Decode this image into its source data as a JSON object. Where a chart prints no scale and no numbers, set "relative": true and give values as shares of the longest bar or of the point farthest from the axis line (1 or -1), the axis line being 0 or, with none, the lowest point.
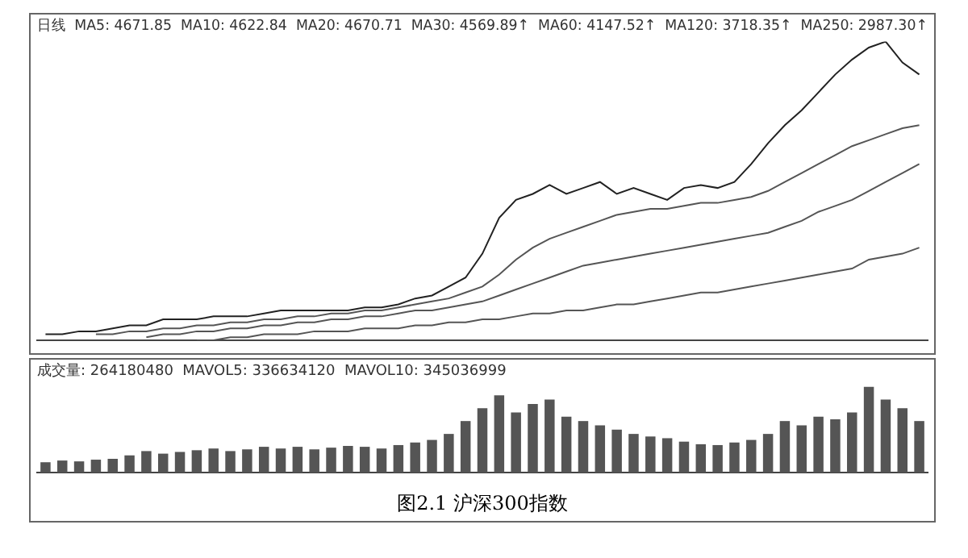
{
  "chart_data": [
    {
      "type": "line",
      "title": "日线  MA5: 4671.85  MA10: 4622.84  MA20: 4670.71  MA30: 4569.89↑  MA60: 4147.52↑  MA120: 3718.35↑  MA250: 2987.30↑",
      "relative": true,
      "categories": [
        null,
        null,
        null,
        null,
        null,
        null,
        null,
        null,
        null,
        null,
        null,
        null,
        null,
        null,
        null,
        null,
        null,
        null,
        null,
        null,
        null,
        null,
        null,
        null,
        null,
        null,
        null,
        null,
        null,
        null,
        null,
        null,
        null,
        null,
        null,
        null,
        null,
        null,
        null,
        null,
        null,
        null,
        null,
        null,
        null,
        null,
        null,
        null,
        null,
        null,
        null,
        null,
        null
      ],
      "marker": "none",
      "series": [
        {
          "color": "#222222",
          "values": [
            0.02,
            0.02,
            0.03,
            0.03,
            0.04,
            0.05,
            0.05,
            0.07,
            0.07,
            0.07,
            0.08,
            0.08,
            0.08,
            0.09,
            0.1,
            0.1,
            0.1,
            0.1,
            0.1,
            0.11,
            0.11,
            0.12,
            0.14,
            0.15,
            0.18,
            0.21,
            0.29,
            0.41,
            0.47,
            0.49,
            0.52,
            0.49,
            0.51,
            0.53,
            0.49,
            0.51,
            0.49,
            0.47,
            0.51,
            0.52,
            0.51,
            0.53,
            0.59,
            0.66,
            0.72,
            0.77,
            0.83,
            0.89,
            0.94,
            0.98,
            1,
            0.93,
            0.89
          ]
        },
        {
          "color": "#555555",
          "values": [
            null,
            null,
            null,
            0.02,
            0.02,
            0.03,
            0.03,
            0.04,
            0.04,
            0.05,
            0.05,
            0.06,
            0.06,
            0.07,
            0.07,
            0.08,
            0.08,
            0.09,
            0.09,
            0.1,
            0.1,
            0.11,
            0.12,
            0.13,
            0.14,
            0.16,
            0.18,
            0.22,
            0.27,
            0.31,
            0.34,
            0.36,
            0.38,
            0.4,
            0.42,
            0.43,
            0.44,
            0.44,
            0.45,
            0.46,
            0.46,
            0.47,
            0.48,
            0.5,
            0.53,
            0.56,
            0.59,
            0.62,
            0.65,
            0.67,
            0.69,
            0.71,
            0.72
          ]
        },
        {
          "color": "#555555",
          "values": [
            null,
            null,
            null,
            null,
            null,
            null,
            0.01,
            0.02,
            0.02,
            0.03,
            0.03,
            0.04,
            0.04,
            0.05,
            0.05,
            0.06,
            0.06,
            0.07,
            0.07,
            0.08,
            0.08,
            0.09,
            0.1,
            0.1,
            0.11,
            0.12,
            0.13,
            0.15,
            0.17,
            0.19,
            0.21,
            0.23,
            0.25,
            0.26,
            0.27,
            0.28,
            0.29,
            0.3,
            0.31,
            0.32,
            0.33,
            0.34,
            0.35,
            0.36,
            0.38,
            0.4,
            0.43,
            0.45,
            0.47,
            0.5,
            0.53,
            0.56,
            0.59
          ]
        },
        {
          "color": "#555555",
          "values": [
            null,
            null,
            null,
            null,
            null,
            null,
            null,
            null,
            null,
            0,
            0,
            0.01,
            0.01,
            0.02,
            0.02,
            0.02,
            0.03,
            0.03,
            0.03,
            0.04,
            0.04,
            0.04,
            0.05,
            0.05,
            0.06,
            0.06,
            0.07,
            0.07,
            0.08,
            0.09,
            0.09,
            0.1,
            0.1,
            0.11,
            0.12,
            0.12,
            0.13,
            0.14,
            0.15,
            0.16,
            0.16,
            0.17,
            0.18,
            0.19,
            0.2,
            0.21,
            0.22,
            0.23,
            0.24,
            0.27,
            0.28,
            0.29,
            0.31
          ]
        }
      ]
    },
    {
      "type": "bar",
      "title": "成交量: 264180480  MAVOL5: 336634120  MAVOL10: 345036999",
      "relative": true,
      "categories": [
        null,
        null,
        null,
        null,
        null,
        null,
        null,
        null,
        null,
        null,
        null,
        null,
        null,
        null,
        null,
        null,
        null,
        null,
        null,
        null,
        null,
        null,
        null,
        null,
        null,
        null,
        null,
        null,
        null,
        null,
        null,
        null,
        null,
        null,
        null,
        null,
        null,
        null,
        null,
        null,
        null,
        null,
        null,
        null,
        null,
        null,
        null,
        null,
        null,
        null,
        null,
        null,
        null
      ],
      "values": [
        0.12,
        0.14,
        0.13,
        0.15,
        0.16,
        0.2,
        0.25,
        0.22,
        0.24,
        0.26,
        0.28,
        0.25,
        0.27,
        0.3,
        0.28,
        0.3,
        0.27,
        0.29,
        0.31,
        0.3,
        0.28,
        0.32,
        0.35,
        0.38,
        0.45,
        0.6,
        0.75,
        0.9,
        0.7,
        0.8,
        0.85,
        0.65,
        0.6,
        0.55,
        0.5,
        0.45,
        0.42,
        0.4,
        0.36,
        0.33,
        0.32,
        0.35,
        0.38,
        0.45,
        0.6,
        0.55,
        0.65,
        0.62,
        0.7,
        1,
        0.85,
        0.75,
        0.6
      ],
      "color": "#555555",
      "annotations": [
        "图2.1  沪深300指数"
      ]
    }
  ]
}
